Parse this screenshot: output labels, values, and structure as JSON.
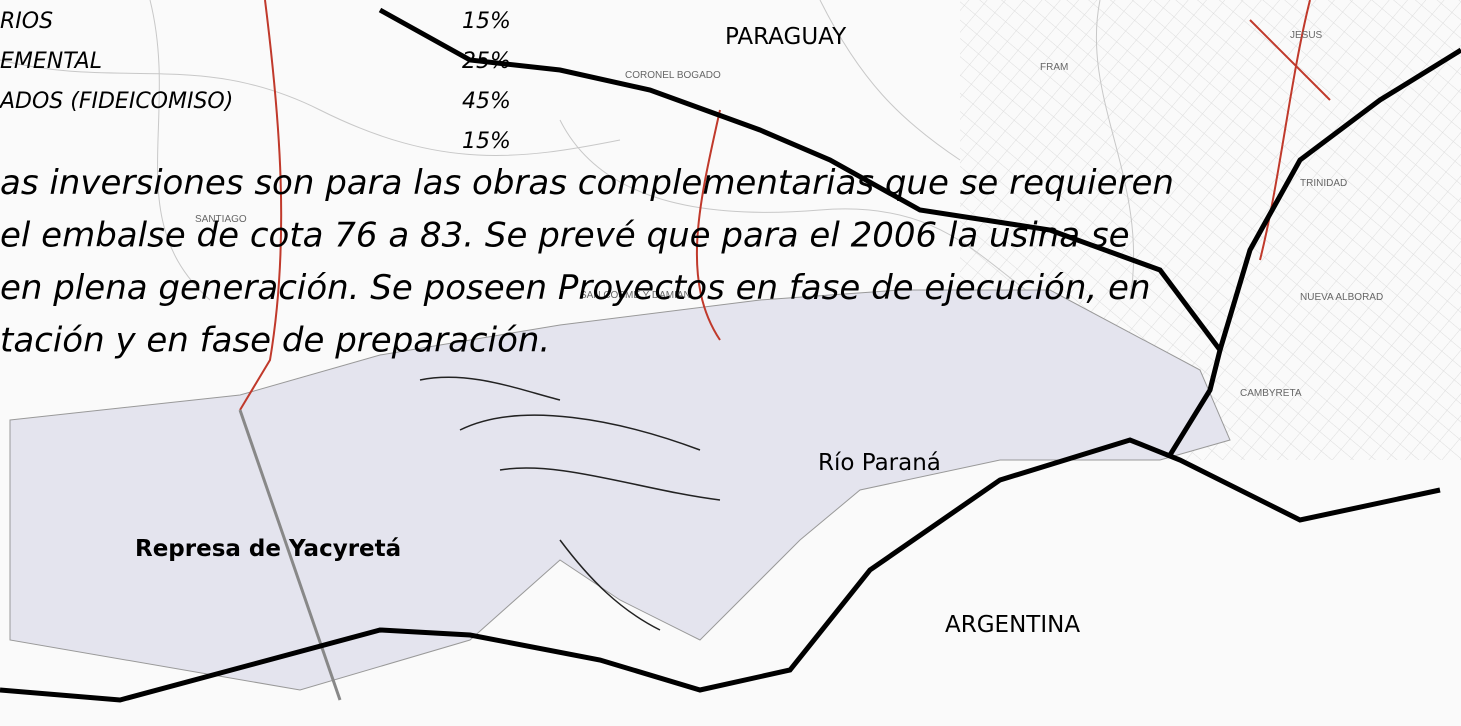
{
  "legend_table": {
    "rows": [
      {
        "label": "RIOS",
        "share": "15%"
      },
      {
        "label": "EMENTAL",
        "share": "25%"
      },
      {
        "label": "ADOS (FIDEICOMISO)",
        "share": "45%"
      },
      {
        "share": "15%"
      }
    ]
  },
  "paragraph": {
    "lines": [
      "as inversiones son para las obras complementarias que se requieren",
      "el embalse de cota 76 a 83. Se prevé que para el 2006 la usina se",
      "en plena generación. Se poseen Proyectos en fase de ejecución, en",
      "tación y en fase de preparación."
    ]
  },
  "map_labels": {
    "country_north": "PARAGUAY",
    "river": "Río Paraná",
    "dam": "Represa de Yacyretá",
    "country_south": "ARGENTINA"
  },
  "towns": [
    "CORONEL BOGADO",
    "FRAM",
    "JESUS",
    "TRINIDAD",
    "NUEVA ALBORAD",
    "SANTIAGO",
    "CAMBYRETA",
    "SAN COSME Y DAMIAN"
  ]
}
